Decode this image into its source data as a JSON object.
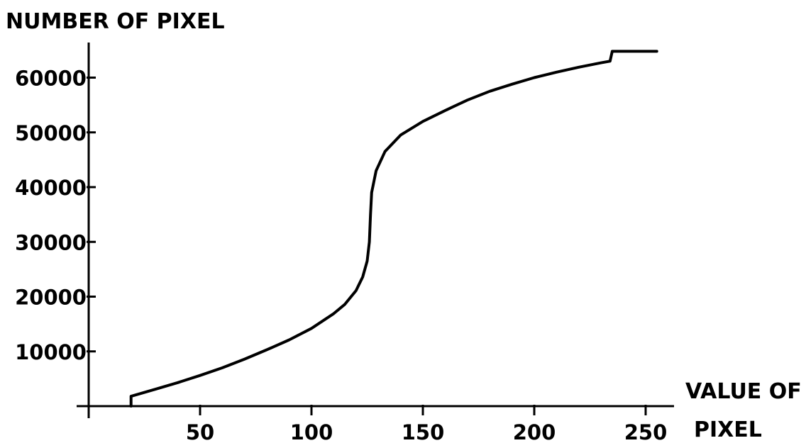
{
  "chart_data": {
    "type": "line",
    "title": "",
    "ylabel": "NUMBER OF PIXEL",
    "xlabel_line1": "VALUE OF",
    "xlabel_line2": "PIXEL",
    "xlim": [
      0,
      255
    ],
    "ylim": [
      0,
      65000
    ],
    "x_ticks": [
      50,
      100,
      150,
      200,
      250
    ],
    "y_ticks": [
      10000,
      20000,
      30000,
      40000,
      50000,
      60000
    ],
    "x_tick_labels": [
      "50",
      "100",
      "150",
      "200",
      "250"
    ],
    "y_tick_labels": [
      "10000",
      "20000",
      "30000",
      "40000",
      "50000",
      "60000"
    ],
    "grid": false,
    "series": [
      {
        "name": "",
        "color": "#000000",
        "points": [
          [
            19,
            0
          ],
          [
            19,
            1800
          ],
          [
            30,
            3100
          ],
          [
            40,
            4300
          ],
          [
            50,
            5600
          ],
          [
            60,
            7000
          ],
          [
            70,
            8600
          ],
          [
            80,
            10300
          ],
          [
            90,
            12100
          ],
          [
            100,
            14200
          ],
          [
            110,
            16900
          ],
          [
            115,
            18600
          ],
          [
            120,
            21100
          ],
          [
            123,
            23600
          ],
          [
            125,
            26500
          ],
          [
            126,
            30000
          ],
          [
            126.5,
            35000
          ],
          [
            127,
            39000
          ],
          [
            129,
            43000
          ],
          [
            133,
            46500
          ],
          [
            140,
            49500
          ],
          [
            150,
            52000
          ],
          [
            160,
            54000
          ],
          [
            170,
            55900
          ],
          [
            180,
            57500
          ],
          [
            190,
            58800
          ],
          [
            200,
            60000
          ],
          [
            210,
            61000
          ],
          [
            220,
            61900
          ],
          [
            230,
            62700
          ],
          [
            234,
            63000
          ],
          [
            235,
            64800
          ],
          [
            255,
            64800
          ]
        ]
      }
    ]
  }
}
